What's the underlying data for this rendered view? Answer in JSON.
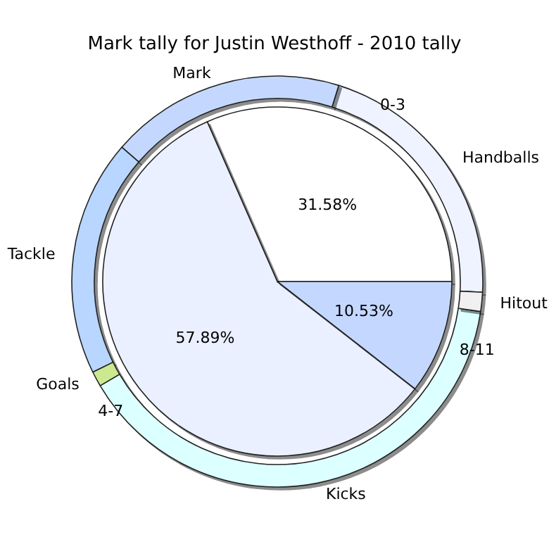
{
  "chart_data": [
    {
      "type": "pie",
      "title": "Mark tally for Justin Westhoff - 2010 tally",
      "categories": [
        "0-3",
        "4-7",
        "8-11"
      ],
      "values": [
        31.58,
        57.89,
        10.53
      ],
      "colors": [
        "#ffffff",
        "#eaf0ff",
        "#c4d8ff"
      ],
      "value_labels": [
        "31.58%",
        "57.89%",
        "10.53%"
      ]
    },
    {
      "type": "donut",
      "categories": [
        "Handballs",
        "Mark",
        "Tackle",
        "Goals",
        "Kicks",
        "Hitout"
      ],
      "values": [
        21,
        18.5,
        18.6,
        1.2,
        39.2,
        1.5
      ],
      "colors": [
        "#eef3ff",
        "#c4d8ff",
        "#b8d6ff",
        "#cce890",
        "#dcffff",
        "#f0f0f0"
      ]
    }
  ]
}
